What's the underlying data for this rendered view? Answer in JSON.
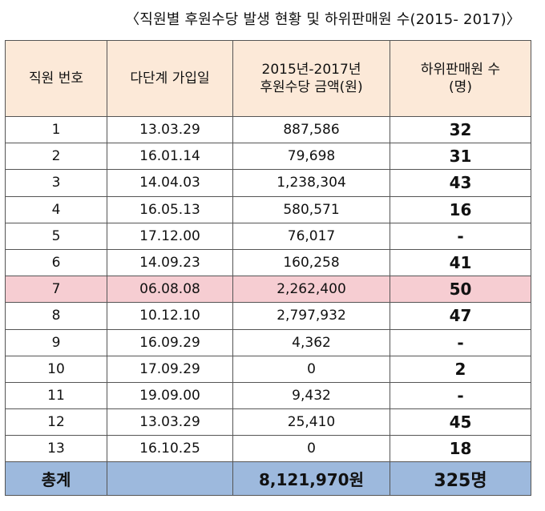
{
  "title": "〈직원별 후원수당 발생 현황 및 하위판매원 수(2015- 2017)〉",
  "headers": {
    "id": "직원 번호",
    "date": "다단계 가입일",
    "amount_line1": "2015년-2017년",
    "amount_line2": "후원수당 금액(원)",
    "count_line1": "하위판매원 수",
    "count_line2": "(명)"
  },
  "rows": [
    {
      "id": "1",
      "date": "13.03.29",
      "amount": "887,586",
      "count": "32"
    },
    {
      "id": "2",
      "date": "16.01.14",
      "amount": "79,698",
      "count": "31"
    },
    {
      "id": "3",
      "date": "14.04.03",
      "amount": "1,238,304",
      "count": "43"
    },
    {
      "id": "4",
      "date": "16.05.13",
      "amount": "580,571",
      "count": "16"
    },
    {
      "id": "5",
      "date": "17.12.00",
      "amount": "76,017",
      "count": "-"
    },
    {
      "id": "6",
      "date": "14.09.23",
      "amount": "160,258",
      "count": "41"
    },
    {
      "id": "7",
      "date": "06.08.08",
      "amount": "2,262,400",
      "count": "50"
    },
    {
      "id": "8",
      "date": "10.12.10",
      "amount": "2,797,932",
      "count": "47"
    },
    {
      "id": "9",
      "date": "16.09.29",
      "amount": "4,362",
      "count": "-"
    },
    {
      "id": "10",
      "date": "17.09.29",
      "amount": "0",
      "count": "2"
    },
    {
      "id": "11",
      "date": "19.09.00",
      "amount": "9,432",
      "count": "-"
    },
    {
      "id": "12",
      "date": "13.03.29",
      "amount": "25,410",
      "count": "45"
    },
    {
      "id": "13",
      "date": "16.10.25",
      "amount": "0",
      "count": "18"
    }
  ],
  "total": {
    "label": "총계",
    "date": "",
    "amount": "8,121,970원",
    "count": "325명"
  },
  "colors": {
    "header_bg": "#fce9d8",
    "highlight_row": "#f6cdd2",
    "total_bg": "#9db9dd"
  }
}
